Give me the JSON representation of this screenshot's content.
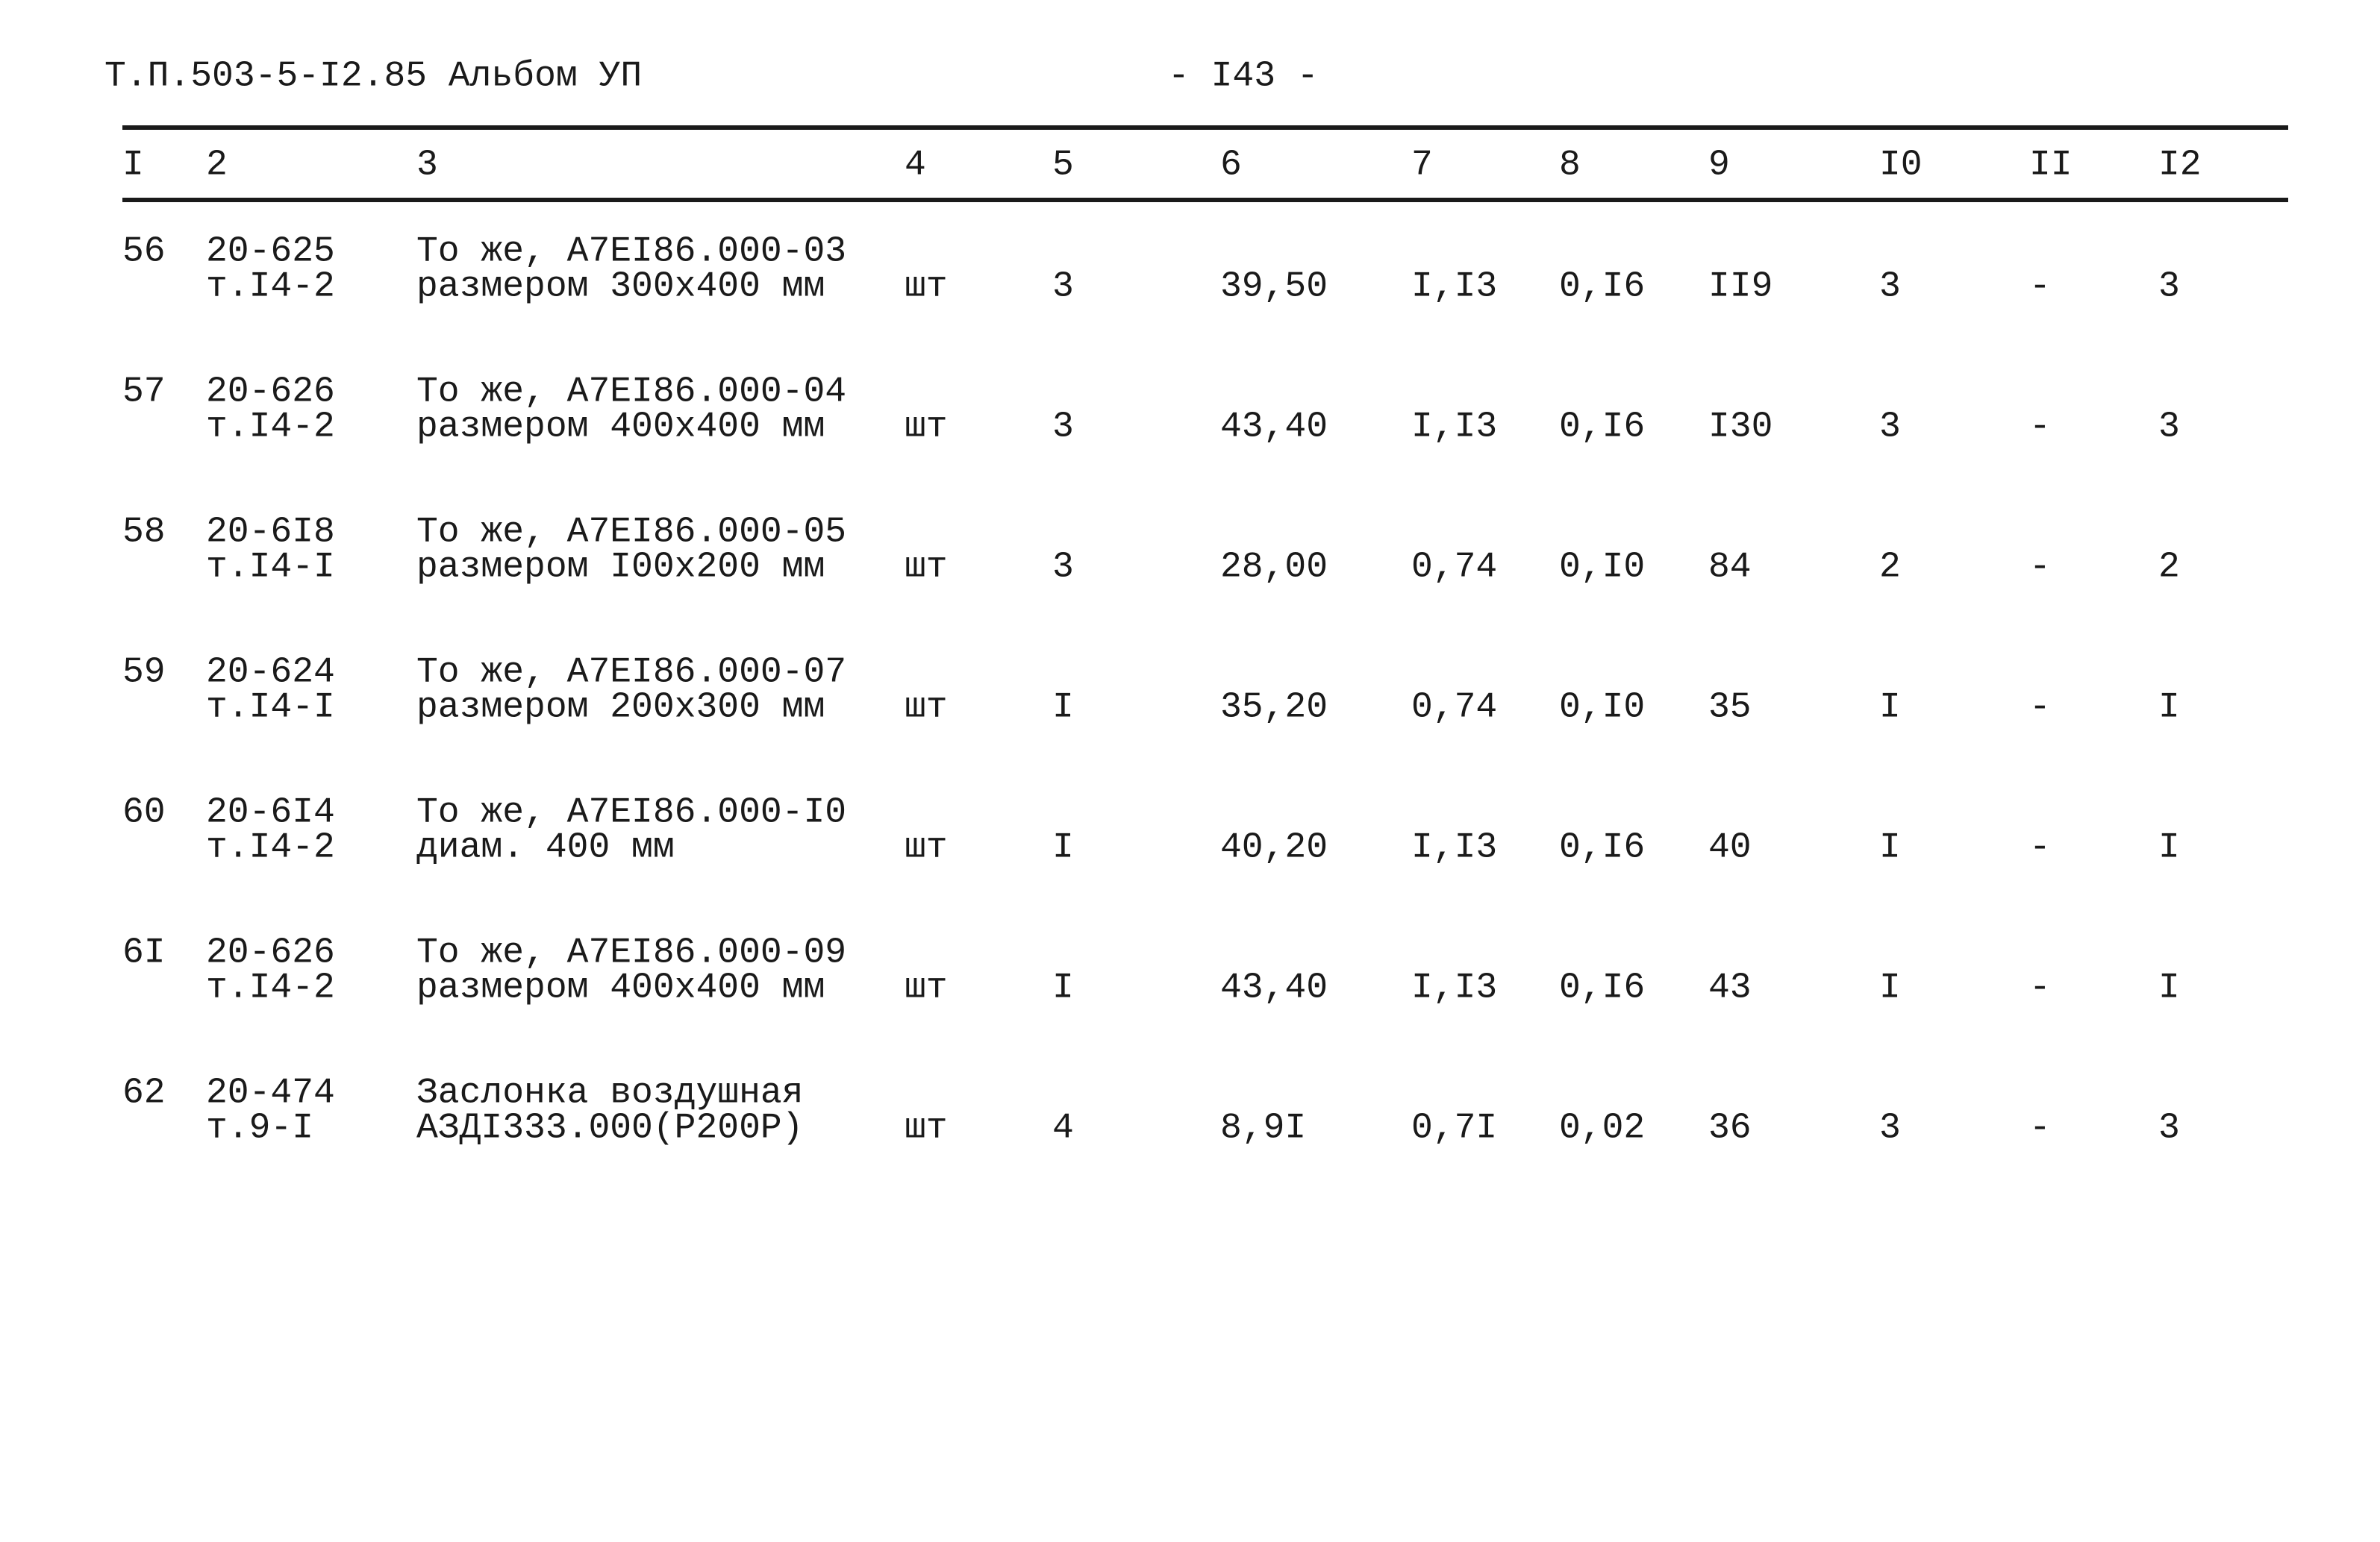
{
  "header": {
    "title": "Т.П.503-5-I2.85 Альбом УП",
    "page": "- I43 -"
  },
  "table": {
    "columns": [
      "I",
      "2",
      "3",
      "4",
      "5",
      "6",
      "7",
      "8",
      "9",
      "I0",
      "II",
      "I2"
    ],
    "rows": [
      [
        "56",
        [
          "20-625",
          "т.I4-2"
        ],
        [
          "То же, А7ЕI86.000-03",
          "размером 300х400 мм"
        ],
        "шт",
        "3",
        "39,50",
        "I,I3",
        "0,I6",
        "II9",
        "3",
        "-",
        "3"
      ],
      [
        "57",
        [
          "20-626",
          "т.I4-2"
        ],
        [
          "То же, А7ЕI86.000-04",
          "размером 400х400 мм"
        ],
        "шт",
        "3",
        "43,40",
        "I,I3",
        "0,I6",
        "I30",
        "3",
        "-",
        "3"
      ],
      [
        "58",
        [
          "20-6I8",
          "т.I4-I"
        ],
        [
          "То же, А7ЕI86.000-05",
          "размером I00х200 мм"
        ],
        "шт",
        "3",
        "28,00",
        "0,74",
        "0,I0",
        "84",
        "2",
        "-",
        "2"
      ],
      [
        "59",
        [
          "20-624",
          "т.I4-I"
        ],
        [
          "То же, А7ЕI86.000-07",
          "размером 200х300 мм"
        ],
        "шт",
        "I",
        "35,20",
        "0,74",
        "0,I0",
        "35",
        "I",
        "-",
        "I"
      ],
      [
        "60",
        [
          "20-6I4",
          "т.I4-2"
        ],
        [
          "То же, А7ЕI86.000-I0",
          "диам. 400 мм"
        ],
        "шт",
        "I",
        "40,20",
        "I,I3",
        "0,I6",
        "40",
        "I",
        "-",
        "I"
      ],
      [
        "6I",
        [
          "20-626",
          "т.I4-2"
        ],
        [
          "То же, А7ЕI86.000-09",
          "размером 400х400 мм"
        ],
        "шт",
        "I",
        "43,40",
        "I,I3",
        "0,I6",
        "43",
        "I",
        "-",
        "I"
      ],
      [
        "62",
        [
          "20-474",
          "т.9-I"
        ],
        [
          "Заслонка воздушная",
          "АЗДI333.000(Р200Р)"
        ],
        "шт",
        "4",
        "8,9I",
        "0,7I",
        "0,02",
        "36",
        "3",
        "-",
        "3"
      ]
    ]
  }
}
